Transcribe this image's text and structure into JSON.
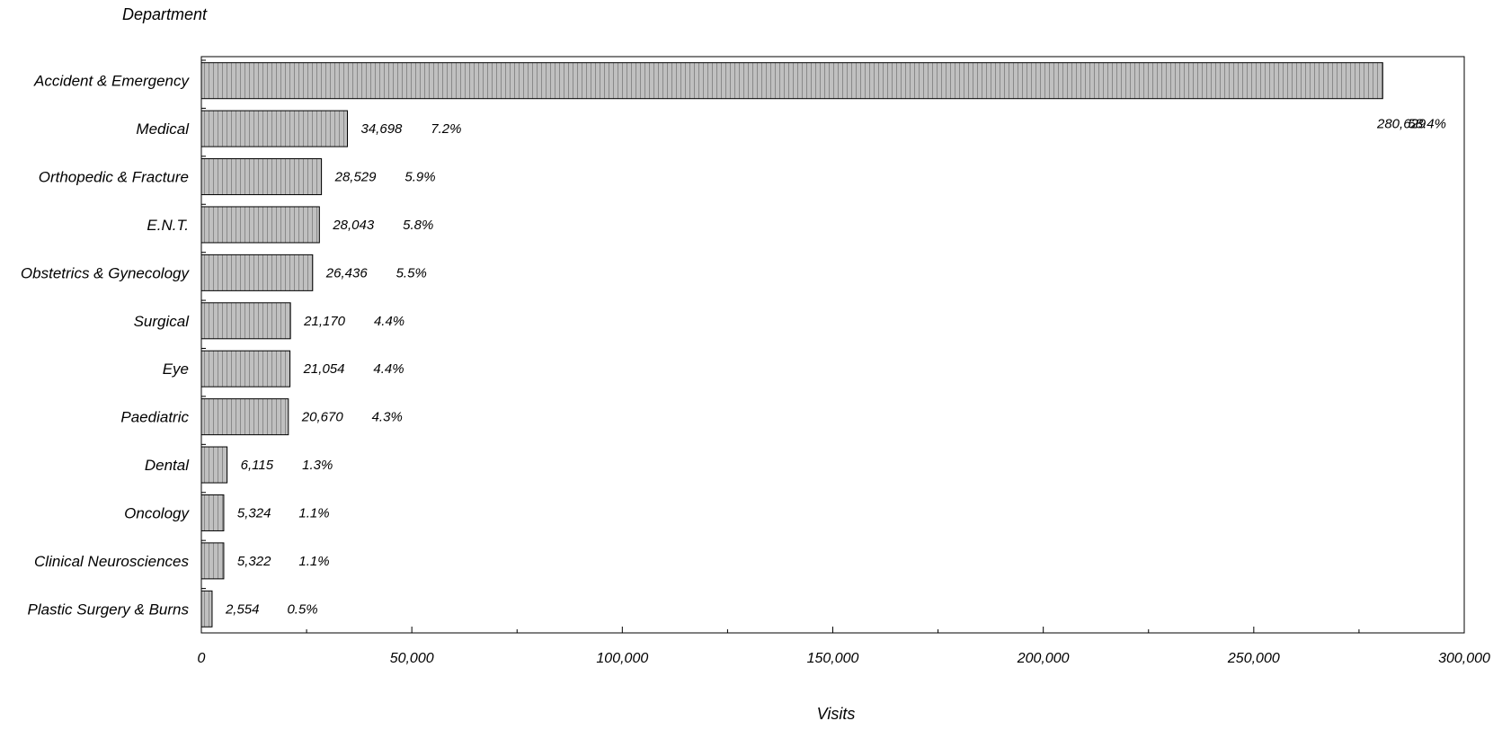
{
  "chart_data": {
    "type": "bar",
    "orientation": "horizontal",
    "ylabel": "Department",
    "xlabel": "Visits",
    "xlim": [
      0,
      300000
    ],
    "x_ticks": [
      0,
      50000,
      100000,
      150000,
      200000,
      250000,
      300000
    ],
    "x_tick_labels": [
      "0",
      "50,000",
      "100,000",
      "150,000",
      "200,000",
      "250,000",
      "300,000"
    ],
    "grid": false,
    "legend": "none",
    "bar_fill": "#c0c0c0",
    "bar_stripe": "#8a8a8a",
    "categories": [
      "Accident & Emergency",
      "Medical",
      "Orthopedic & Fracture",
      "E.N.T.",
      "Obstetrics & Gynecology",
      "Surgical",
      "Eye",
      "Paediatric",
      "Dental",
      "Oncology",
      "Clinical Neurosciences",
      "Plastic Surgery & Burns"
    ],
    "values": [
      280629,
      34698,
      28529,
      28043,
      26436,
      21170,
      21054,
      20670,
      6115,
      5324,
      5322,
      2554
    ],
    "value_labels": [
      "280,629",
      "34,698",
      "28,529",
      "28,043",
      "26,436",
      "21,170",
      "21,054",
      "20,670",
      "6,115",
      "5,324",
      "5,322",
      "2,554"
    ],
    "percent_labels": [
      "58.4%",
      "7.2%",
      "5.9%",
      "5.8%",
      "5.5%",
      "4.4%",
      "4.4%",
      "4.3%",
      "1.3%",
      "1.1%",
      "1.1%",
      "0.5%"
    ]
  }
}
